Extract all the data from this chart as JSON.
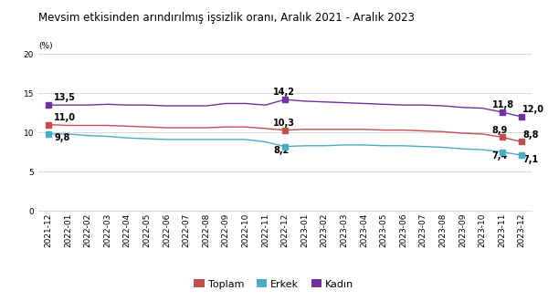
{
  "title": "Mevsim etkisinden arındırılmış işsizlik oranı, Aralık 2021 - Aralık 2023",
  "ylabel": "(%)",
  "ylim": [
    0,
    20
  ],
  "yticks": [
    0,
    5,
    10,
    15,
    20
  ],
  "legend_labels": [
    "Toplam",
    "Erkek",
    "Kadın"
  ],
  "legend_colors": [
    "#c0504d",
    "#4bacc6",
    "#7030a0"
  ],
  "x_labels": [
    "2021-12",
    "2022-01",
    "2022-02",
    "2022-03",
    "2022-04",
    "2022-05",
    "2022-06",
    "2022-07",
    "2022-08",
    "2022-09",
    "2022-10",
    "2022-11",
    "2022-12",
    "2023-01",
    "2023-02",
    "2023-03",
    "2023-04",
    "2023-05",
    "2023-06",
    "2023-07",
    "2023-08",
    "2023-09",
    "2023-10",
    "2023-11",
    "2023-12"
  ],
  "toplam": [
    11.0,
    10.9,
    10.9,
    10.9,
    10.8,
    10.7,
    10.6,
    10.6,
    10.6,
    10.7,
    10.7,
    10.5,
    10.3,
    10.4,
    10.4,
    10.4,
    10.4,
    10.3,
    10.3,
    10.2,
    10.1,
    9.9,
    9.8,
    9.4,
    8.8
  ],
  "erkek": [
    9.8,
    9.8,
    9.6,
    9.5,
    9.3,
    9.2,
    9.1,
    9.1,
    9.1,
    9.1,
    9.1,
    8.8,
    8.2,
    8.3,
    8.3,
    8.4,
    8.4,
    8.3,
    8.3,
    8.2,
    8.1,
    7.9,
    7.8,
    7.5,
    7.1
  ],
  "kadin": [
    13.5,
    13.5,
    13.5,
    13.6,
    13.5,
    13.5,
    13.4,
    13.4,
    13.4,
    13.7,
    13.7,
    13.5,
    14.2,
    14.0,
    13.9,
    13.8,
    13.7,
    13.6,
    13.5,
    13.5,
    13.4,
    13.2,
    13.1,
    12.6,
    12.0
  ],
  "background_color": "#ffffff",
  "grid_color": "#d9d9d9",
  "title_fontsize": 8.5,
  "tick_fontsize": 6.5,
  "annot_fontsize": 7
}
